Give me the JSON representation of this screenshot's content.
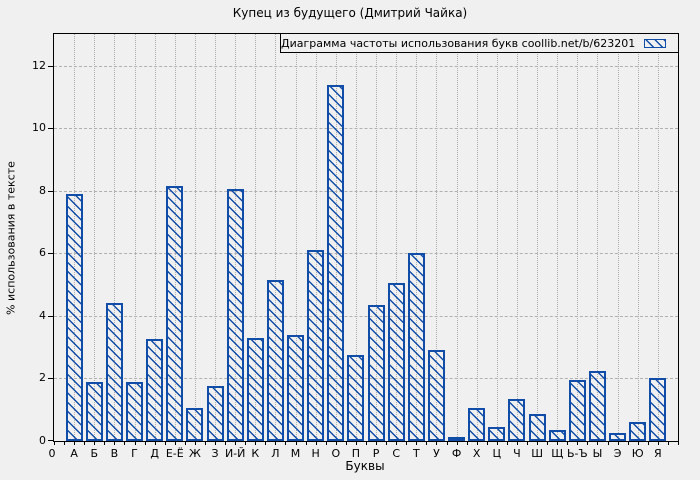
{
  "page": {
    "background_color": "#f0f0f0",
    "frame_color": "#000000",
    "grid_color": "#b0b0b0"
  },
  "chart_data": {
    "type": "bar",
    "title": "Купец из будущего (Дмитрий Чайка)",
    "legend_entry": "Диаграмма частоты использования букв coollib.net/b/623201",
    "legend_position": "top-right-inside-box",
    "xlabel": "Буквы",
    "ylabel": "% использования в тексте",
    "origin_label": "0",
    "yticks": [
      0,
      2,
      4,
      6,
      8,
      10,
      12
    ],
    "ylim": [
      0,
      13.02
    ],
    "grid": true,
    "bar_color": "#0f4da8",
    "bar_fill": "hatch-diagonal-backslash",
    "categories": [
      "А",
      "Б",
      "В",
      "Г",
      "Д",
      "Е-Ё",
      "Ж",
      "З",
      "И-Й",
      "К",
      "Л",
      "М",
      "Н",
      "О",
      "П",
      "Р",
      "С",
      "Т",
      "У",
      "Ф",
      "Х",
      "Ц",
      "Ч",
      "Ш",
      "Щ",
      "Ь-Ъ",
      "Ы",
      "Э",
      "Ю",
      "Я"
    ],
    "values": [
      7.9,
      1.9,
      4.4,
      1.9,
      3.25,
      8.15,
      1.05,
      1.75,
      8.05,
      3.3,
      5.15,
      3.4,
      6.1,
      11.4,
      2.75,
      4.35,
      5.05,
      6.0,
      2.9,
      0.1,
      1.05,
      0.45,
      1.35,
      0.85,
      0.35,
      1.95,
      2.25,
      0.25,
      0.6,
      2.0
    ]
  }
}
